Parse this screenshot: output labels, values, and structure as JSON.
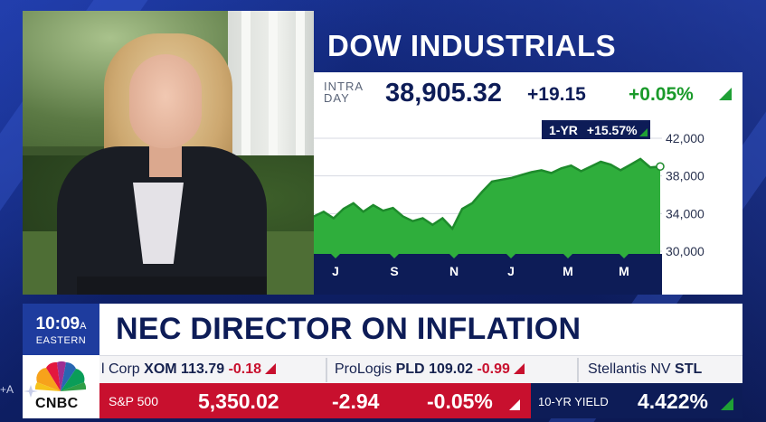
{
  "chart_panel": {
    "title": "DOW INDUSTRIALS",
    "intraday_label_line1": "INTRA",
    "intraday_label_line2": "DAY",
    "price": "38,905.32",
    "change": "+19.15",
    "change_pct": "+0.05%",
    "badge_period": "1-YR",
    "badge_change": "+15.57%"
  },
  "chart_data": {
    "type": "area",
    "title": "DOW INDUSTRIALS",
    "x_tick_labels": [
      "J",
      "S",
      "N",
      "J",
      "M",
      "M"
    ],
    "y_tick_labels": [
      "42,000",
      "38,000",
      "34,000",
      "30,000"
    ],
    "ylim": [
      30000,
      42000
    ],
    "grid": true,
    "series": [
      {
        "values": [
          33700,
          34200,
          33500,
          34500,
          35100,
          34200,
          34900,
          34300,
          34600,
          33700,
          33200,
          33500,
          32800,
          33500,
          32400,
          34500,
          35100,
          36300,
          37400,
          37600,
          37800,
          38100,
          38400,
          38600,
          38300,
          38800,
          39100,
          38500,
          39000,
          39500,
          39200,
          38600,
          39200,
          39800,
          38900,
          39000
        ]
      }
    ],
    "colors": {
      "fill": "#2fae3c",
      "line": "#1e8b2c",
      "axis_band": "#0d1c57"
    }
  },
  "lower_third": {
    "time": "10:09",
    "ampm": "A",
    "zone": "EASTERN",
    "headline": "NEC DIRECTOR ON INFLATION"
  },
  "ticker": [
    {
      "name": "l Corp",
      "symbol": "XOM",
      "price": "113.79",
      "change": "-0.18"
    },
    {
      "name": "ProLogis",
      "symbol": "PLD",
      "price": "109.02",
      "change": "-0.99"
    },
    {
      "name": "Stellantis NV",
      "symbol": "STL",
      "price": "",
      "change": ""
    }
  ],
  "index_bar": {
    "sp_label": "S&P 500",
    "sp_value": "5,350.02",
    "sp_change": "-2.94",
    "sp_change_pct": "-0.05%",
    "yield_label": "10-YR YIELD",
    "yield_value": "4.422%"
  },
  "logo": {
    "text": "CNBC"
  },
  "edge": {
    "label": "+A"
  },
  "colors": {
    "navy": "#0d1c57",
    "green": "#1fa035",
    "red": "#c8102e",
    "clock_blue": "#1e3c9e"
  }
}
